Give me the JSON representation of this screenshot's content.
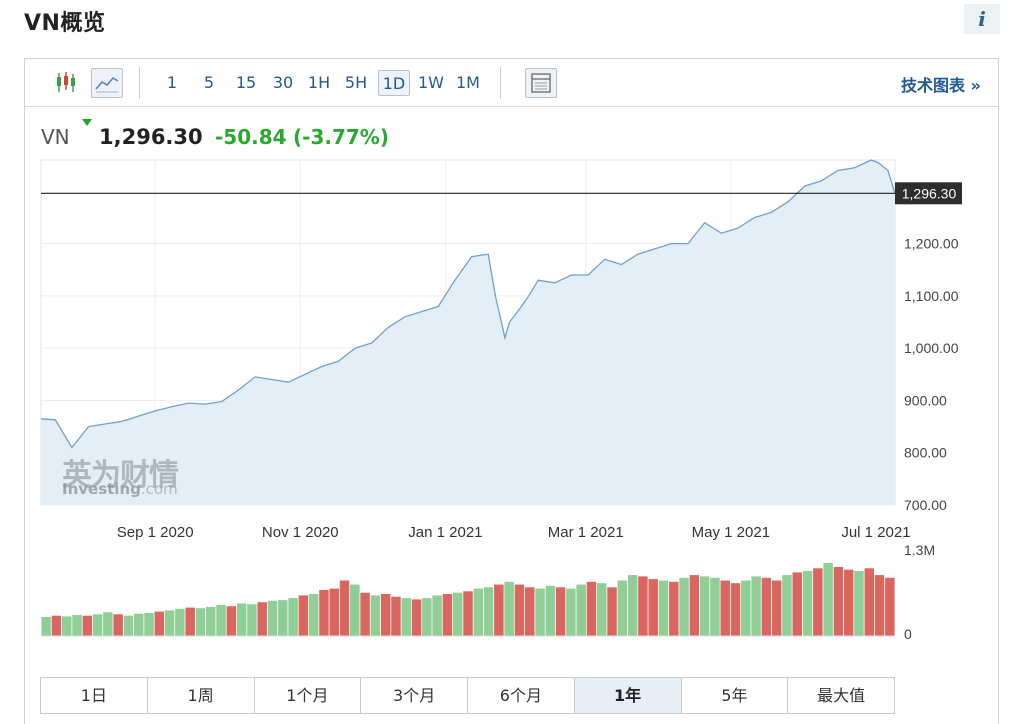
{
  "page": {
    "title": "VN概览",
    "info_label": "i"
  },
  "toolbar": {
    "timeframes": [
      "1",
      "5",
      "15",
      "30",
      "1H",
      "5H",
      "1D",
      "1W",
      "1M"
    ],
    "active_timeframe": "1D",
    "tech_link": "技术图表 »",
    "icons": [
      "candlestick-icon",
      "area-chart-icon",
      "table-view-icon"
    ]
  },
  "quote": {
    "symbol": "VN",
    "price": "1,296.30",
    "change": "-50.84",
    "change_pct": "(-3.77%)",
    "direction": "down"
  },
  "ranges": {
    "items": [
      "1日",
      "1周",
      "1个月",
      "3个月",
      "6个月",
      "1年",
      "5年",
      "最大值"
    ],
    "active": "1年"
  },
  "watermark": {
    "cn": "英为财情",
    "en_main": "Investing",
    "en_suffix": ".com"
  },
  "colors": {
    "line": "#6fa0cf",
    "area": "#e4eef7",
    "volume_up": "#8fce96",
    "volume_down": "#d9665f",
    "positive": "#2ba82f"
  },
  "chart_data": {
    "type": "area",
    "x_tick_labels": [
      "Sep 1 2020",
      "Nov 1 2020",
      "Jan 1 2021",
      "Mar 1 2021",
      "May 1 2021",
      "Jul 1 2021"
    ],
    "x_ticks": [
      "2020-09-01",
      "2020-11-01",
      "2021-01-01",
      "2021-03-01",
      "2021-05-01",
      "2021-07-01"
    ],
    "y_tick_labels": [
      "1,200.00",
      "1,100.00",
      "1,000.00",
      "900.00",
      "800.00",
      "700.00"
    ],
    "y_ticks": [
      1200,
      1100,
      1000,
      900,
      800,
      700
    ],
    "ylim": [
      700,
      1360
    ],
    "last_price_label": "1,296.30",
    "last_price": 1296.3,
    "x": [
      "2020-07-15",
      "2020-07-21",
      "2020-07-28",
      "2020-08-04",
      "2020-08-11",
      "2020-08-18",
      "2020-08-25",
      "2020-09-01",
      "2020-09-08",
      "2020-09-15",
      "2020-09-22",
      "2020-09-29",
      "2020-10-06",
      "2020-10-13",
      "2020-10-20",
      "2020-10-27",
      "2020-11-03",
      "2020-11-10",
      "2020-11-17",
      "2020-11-24",
      "2020-12-01",
      "2020-12-08",
      "2020-12-15",
      "2020-12-22",
      "2020-12-29",
      "2021-01-05",
      "2021-01-12",
      "2021-01-19",
      "2021-01-22",
      "2021-01-26",
      "2021-01-28",
      "2021-02-02",
      "2021-02-05",
      "2021-02-09",
      "2021-02-16",
      "2021-02-23",
      "2021-03-02",
      "2021-03-09",
      "2021-03-16",
      "2021-03-23",
      "2021-03-30",
      "2021-04-06",
      "2021-04-13",
      "2021-04-20",
      "2021-04-27",
      "2021-05-04",
      "2021-05-11",
      "2021-05-18",
      "2021-05-25",
      "2021-06-01",
      "2021-06-08",
      "2021-06-15",
      "2021-06-22",
      "2021-06-29",
      "2021-07-02",
      "2021-07-06",
      "2021-07-09"
    ],
    "values": [
      865,
      863,
      810,
      850,
      855,
      860,
      870,
      880,
      888,
      895,
      893,
      898,
      920,
      945,
      940,
      935,
      950,
      965,
      975,
      1000,
      1010,
      1040,
      1060,
      1070,
      1080,
      1130,
      1175,
      1180,
      1100,
      1020,
      1050,
      1080,
      1100,
      1130,
      1125,
      1140,
      1140,
      1170,
      1160,
      1180,
      1190,
      1200,
      1200,
      1240,
      1220,
      1230,
      1250,
      1260,
      1280,
      1310,
      1320,
      1340,
      1345,
      1360,
      1355,
      1340,
      1296
    ],
    "volume": {
      "label_max": "1.3M",
      "label_min": "0",
      "max": 1300000,
      "values": [
        280000,
        300000,
        290000,
        310000,
        300000,
        320000,
        350000,
        320000,
        300000,
        330000,
        340000,
        360000,
        380000,
        400000,
        420000,
        410000,
        430000,
        460000,
        440000,
        480000,
        470000,
        500000,
        520000,
        530000,
        560000,
        600000,
        620000,
        680000,
        700000,
        820000,
        760000,
        640000,
        600000,
        620000,
        580000,
        560000,
        540000,
        560000,
        600000,
        620000,
        640000,
        660000,
        700000,
        720000,
        760000,
        800000,
        760000,
        720000,
        700000,
        740000,
        720000,
        700000,
        760000,
        800000,
        780000,
        720000,
        820000,
        900000,
        880000,
        840000,
        820000,
        800000,
        860000,
        900000,
        880000,
        860000,
        820000,
        780000,
        820000,
        880000,
        860000,
        820000,
        900000,
        940000,
        960000,
        1000000,
        1080000,
        1020000,
        980000,
        960000,
        1000000,
        900000,
        860000
      ],
      "down": [
        0,
        1,
        0,
        0,
        1,
        0,
        0,
        1,
        0,
        0,
        0,
        1,
        0,
        0,
        1,
        0,
        0,
        0,
        1,
        0,
        0,
        1,
        0,
        0,
        0,
        1,
        0,
        1,
        1,
        1,
        0,
        1,
        0,
        1,
        1,
        0,
        1,
        0,
        0,
        1,
        0,
        1,
        0,
        0,
        1,
        0,
        1,
        1,
        0,
        0,
        1,
        0,
        0,
        1,
        0,
        1,
        0,
        0,
        1,
        1,
        0,
        1,
        0,
        1,
        0,
        0,
        1,
        1,
        0,
        0,
        1,
        1,
        0,
        1,
        0,
        1,
        0,
        1,
        1,
        0,
        1,
        1,
        1
      ]
    }
  }
}
